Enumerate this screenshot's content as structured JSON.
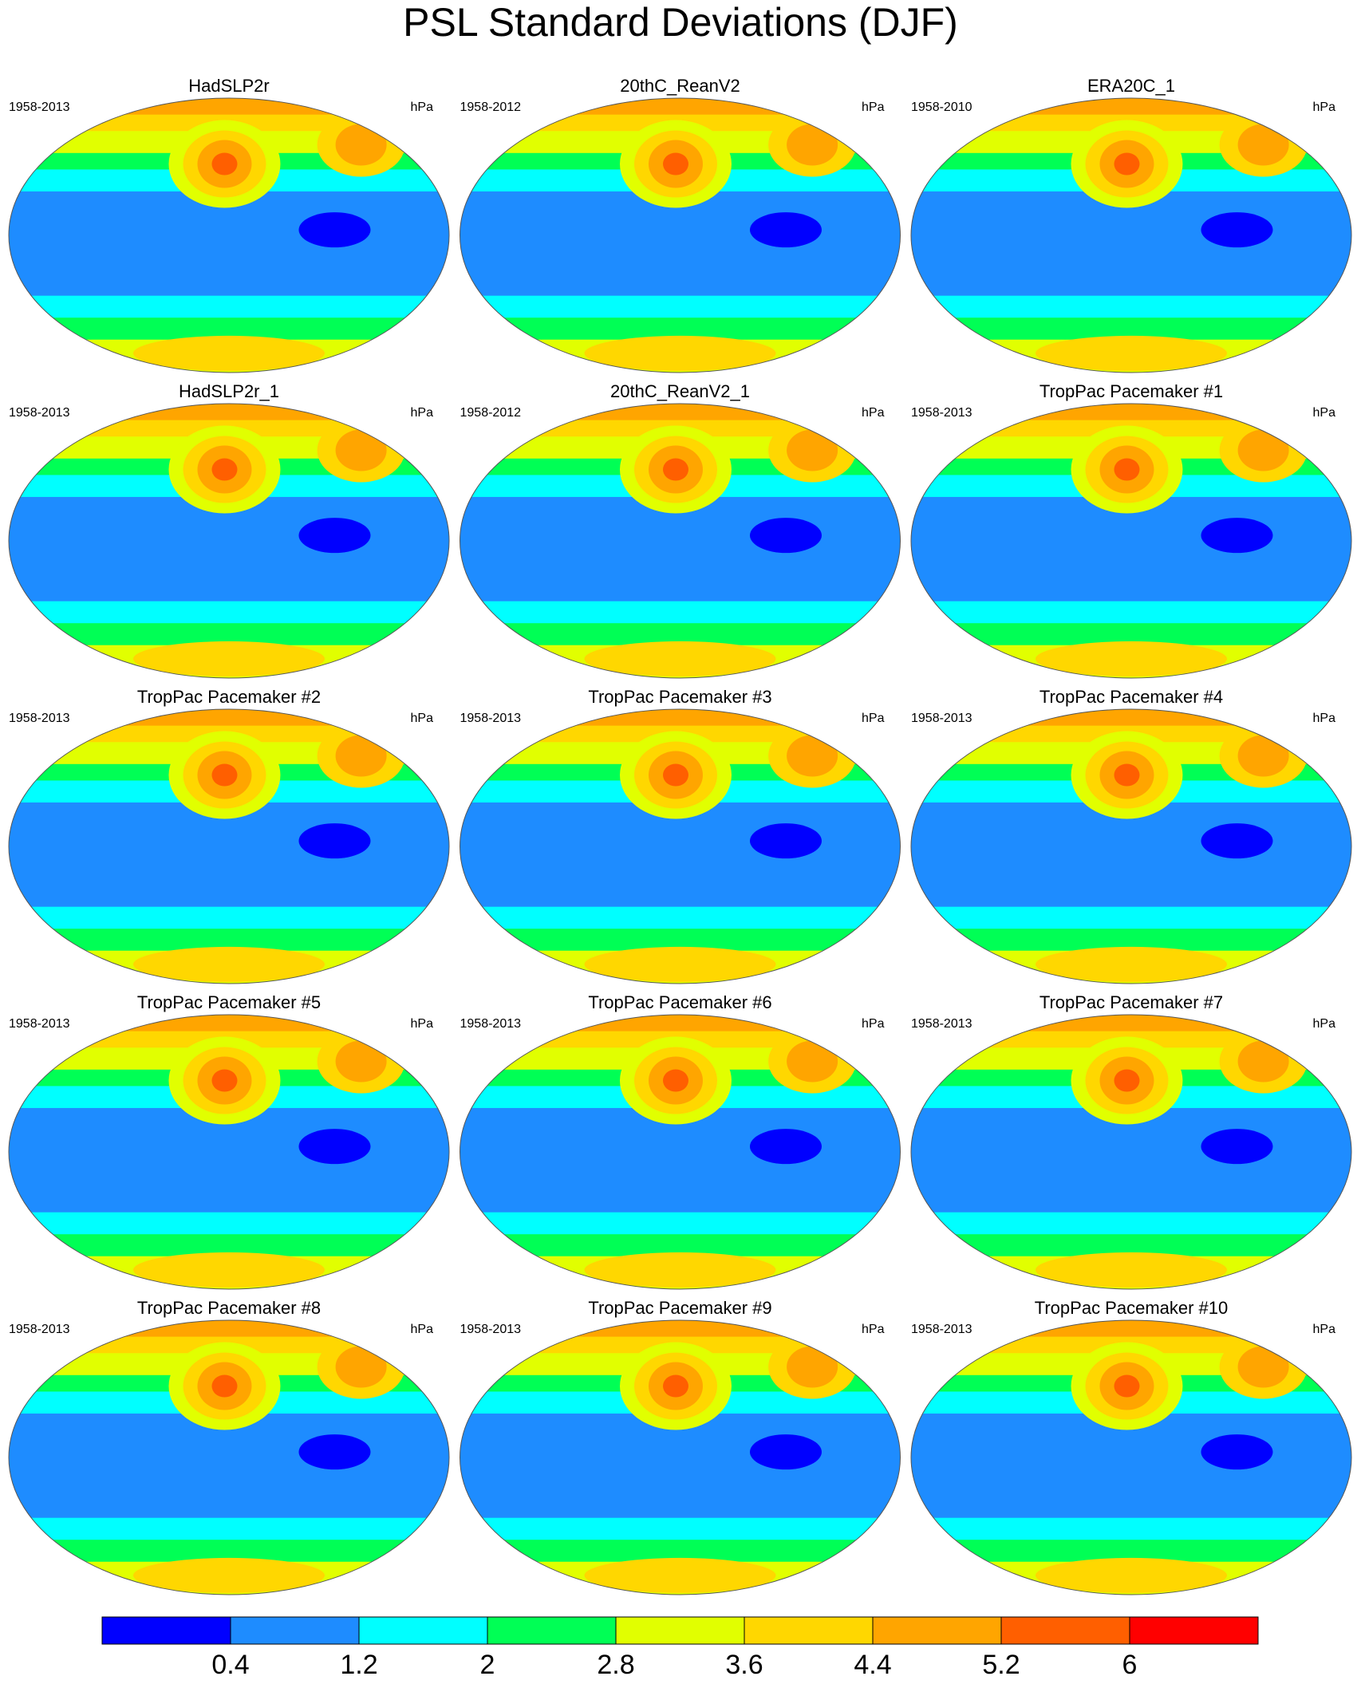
{
  "title": "PSL Standard Deviations (DJF)",
  "panels": [
    {
      "title": "HadSLP2r",
      "years": "1958-2013",
      "units": "hPa"
    },
    {
      "title": "20thC_ReanV2",
      "years": "1958-2012",
      "units": "hPa"
    },
    {
      "title": "ERA20C_1",
      "years": "1958-2010",
      "units": "hPa"
    },
    {
      "title": "HadSLP2r_1",
      "years": "1958-2013",
      "units": "hPa"
    },
    {
      "title": "20thC_ReanV2_1",
      "years": "1958-2012",
      "units": "hPa"
    },
    {
      "title": "TropPac Pacemaker #1",
      "years": "1958-2013",
      "units": "hPa"
    },
    {
      "title": "TropPac Pacemaker #2",
      "years": "1958-2013",
      "units": "hPa"
    },
    {
      "title": "TropPac Pacemaker #3",
      "years": "1958-2013",
      "units": "hPa"
    },
    {
      "title": "TropPac Pacemaker #4",
      "years": "1958-2013",
      "units": "hPa"
    },
    {
      "title": "TropPac Pacemaker #5",
      "years": "1958-2013",
      "units": "hPa"
    },
    {
      "title": "TropPac Pacemaker #6",
      "years": "1958-2013",
      "units": "hPa"
    },
    {
      "title": "TropPac Pacemaker #7",
      "years": "1958-2013",
      "units": "hPa"
    },
    {
      "title": "TropPac Pacemaker #8",
      "years": "1958-2013",
      "units": "hPa"
    },
    {
      "title": "TropPac Pacemaker #9",
      "years": "1958-2013",
      "units": "hPa"
    },
    {
      "title": "TropPac Pacemaker #10",
      "years": "1958-2013",
      "units": "hPa"
    }
  ],
  "colorbar": {
    "colors": [
      "#0000ff",
      "#1e8cff",
      "#00ffff",
      "#00ff55",
      "#e1ff00",
      "#ffd700",
      "#ffa500",
      "#ff5f00",
      "#ff0000"
    ],
    "labels": [
      0.4,
      1.2,
      2,
      2.8,
      3.6,
      4.4,
      5.2,
      6
    ]
  }
}
